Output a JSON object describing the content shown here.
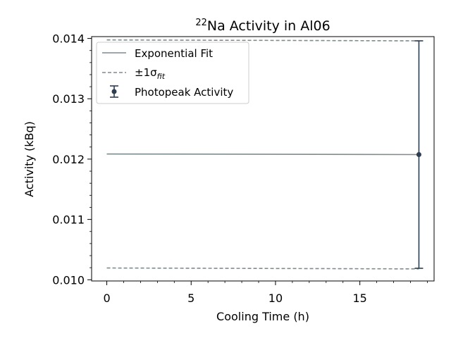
{
  "chart_data": {
    "type": "line",
    "title": {
      "sup": "22",
      "main": "Na Activity in Al06"
    },
    "xlabel": "Cooling Time (h)",
    "ylabel": "Activity (kBq)",
    "xlim": [
      -0.9,
      19.4
    ],
    "ylim": [
      0.00998,
      0.01403
    ],
    "xticks": [
      0,
      5,
      10,
      15
    ],
    "xtick_labels": [
      "0",
      "5",
      "10",
      "15"
    ],
    "yticks": [
      0.01,
      0.011,
      0.012,
      0.013,
      0.014
    ],
    "ytick_labels": [
      "0.010",
      "0.011",
      "0.012",
      "0.013",
      "0.014"
    ],
    "legend_position": "top-left",
    "grid": false,
    "series": [
      {
        "name": "Exponential Fit",
        "style": "solid",
        "color": "#7f8c8d",
        "x": [
          0,
          18.5
        ],
        "y": [
          0.012085,
          0.012075
        ]
      },
      {
        "name_prefix": "±1σ",
        "name_subscript": "fit",
        "style": "dashed",
        "color": "#7f8c8d",
        "lines": [
          {
            "x": [
              0,
              18.5
            ],
            "y": [
              0.013975,
              0.01396
            ]
          },
          {
            "x": [
              0,
              18.5
            ],
            "y": [
              0.010195,
              0.01018
            ]
          }
        ]
      },
      {
        "name": "Photopeak Activity",
        "style": "errorbar",
        "color": "#2c3e50",
        "points": [
          {
            "x": 18.5,
            "y": 0.012075,
            "yerr": 0.001885
          }
        ]
      }
    ]
  }
}
